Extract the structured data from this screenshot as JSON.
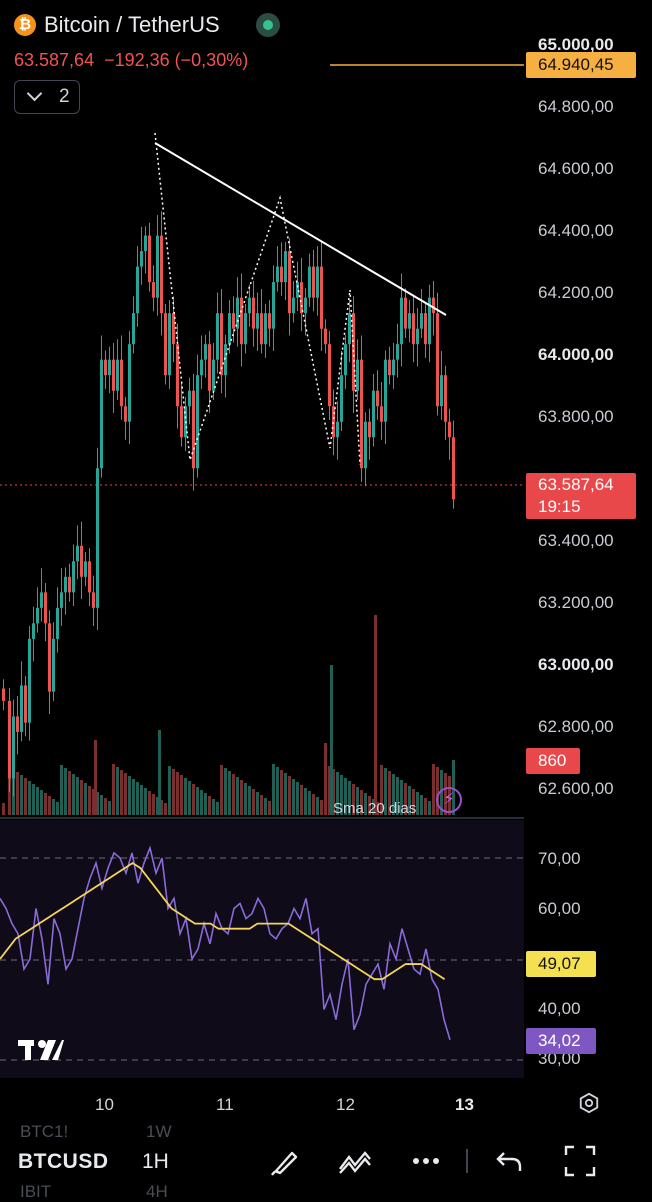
{
  "header": {
    "symbol_title": "Bitcoin / TetherUS",
    "coin_glyph": "₿",
    "last_price": "63.587,64",
    "change": "−192,36 (−0,30%)",
    "collapse_count": "2"
  },
  "price_axis": {
    "labels": [
      {
        "text": "65.000,00",
        "bold": true
      },
      {
        "text": "64.800,00",
        "bold": false
      },
      {
        "text": "64.600,00",
        "bold": false
      },
      {
        "text": "64.400,00",
        "bold": false
      },
      {
        "text": "64.200,00",
        "bold": false
      },
      {
        "text": "64.000,00",
        "bold": true
      },
      {
        "text": "63.800,00",
        "bold": false
      },
      {
        "text": "63.400,00",
        "bold": false
      },
      {
        "text": "63.200,00",
        "bold": false
      },
      {
        "text": "63.000,00",
        "bold": true
      },
      {
        "text": "62.800,00",
        "bold": false
      },
      {
        "text": "62.600,00",
        "bold": false
      }
    ],
    "high_tag": "64.940,45",
    "last_tag_price": "63.587,64",
    "last_tag_countdown": "19:15",
    "volume_tag": "860"
  },
  "indicator": {
    "sma_label": "Sma 20 dias",
    "rsi_axis": [
      "70,00",
      "60,00",
      "49,07",
      "40,00",
      "34,02",
      "30,00"
    ],
    "rsi_ma_value": "49,07",
    "rsi_value": "34,02",
    "rsi_axis_ticks": [
      "70,00",
      "60,00",
      "40,00",
      "30,00"
    ]
  },
  "time_axis": {
    "labels": [
      {
        "text": "10",
        "bold": false
      },
      {
        "text": "11",
        "bold": false
      },
      {
        "text": "12",
        "bold": false
      },
      {
        "text": "13",
        "bold": true
      }
    ]
  },
  "bottom_bar": {
    "symbol": "BTCUSD",
    "interval": "1H",
    "ghost_items": [
      "BTC1!",
      "1W",
      "IBIT",
      "4H"
    ]
  },
  "colors": {
    "up": "#26a69a",
    "down": "#ef5350",
    "trendline": "#ffffff",
    "rsi_line": "#8a6bd8",
    "rsi_ma": "#f5d45a",
    "high_line": "#f5b041"
  },
  "icons": [
    "bitcoin-icon",
    "live-status-icon",
    "chevron-down-icon",
    "lightning-icon",
    "settings-icon",
    "tradingview-logo",
    "brush-icon",
    "patterns-icon",
    "more-icon",
    "undo-icon",
    "fullscreen-icon"
  ]
}
